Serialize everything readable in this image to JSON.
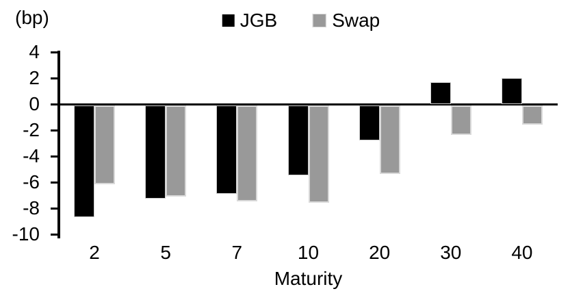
{
  "chart_data": {
    "type": "bar",
    "title": "",
    "unit_label": "(bp)",
    "xlabel": "Maturity",
    "categories": [
      "2",
      "5",
      "7",
      "10",
      "20",
      "30",
      "40"
    ],
    "series": [
      {
        "name": "JGB",
        "color": "#000000",
        "values": [
          -8.6,
          -7.2,
          -6.8,
          -5.4,
          -2.7,
          1.7,
          2.0
        ]
      },
      {
        "name": "Swap",
        "color": "#999999",
        "values": [
          -6.1,
          -7.0,
          -7.4,
          -7.5,
          -5.3,
          -2.3,
          -1.5
        ]
      }
    ],
    "ylim": [
      -10,
      4
    ],
    "yticks": [
      4,
      2,
      0,
      -2,
      -4,
      -6,
      -8,
      -10
    ],
    "grid": false,
    "legend_position": "top-center",
    "axis_color": "#000000",
    "bar_border_color": "#d9d9d9"
  }
}
